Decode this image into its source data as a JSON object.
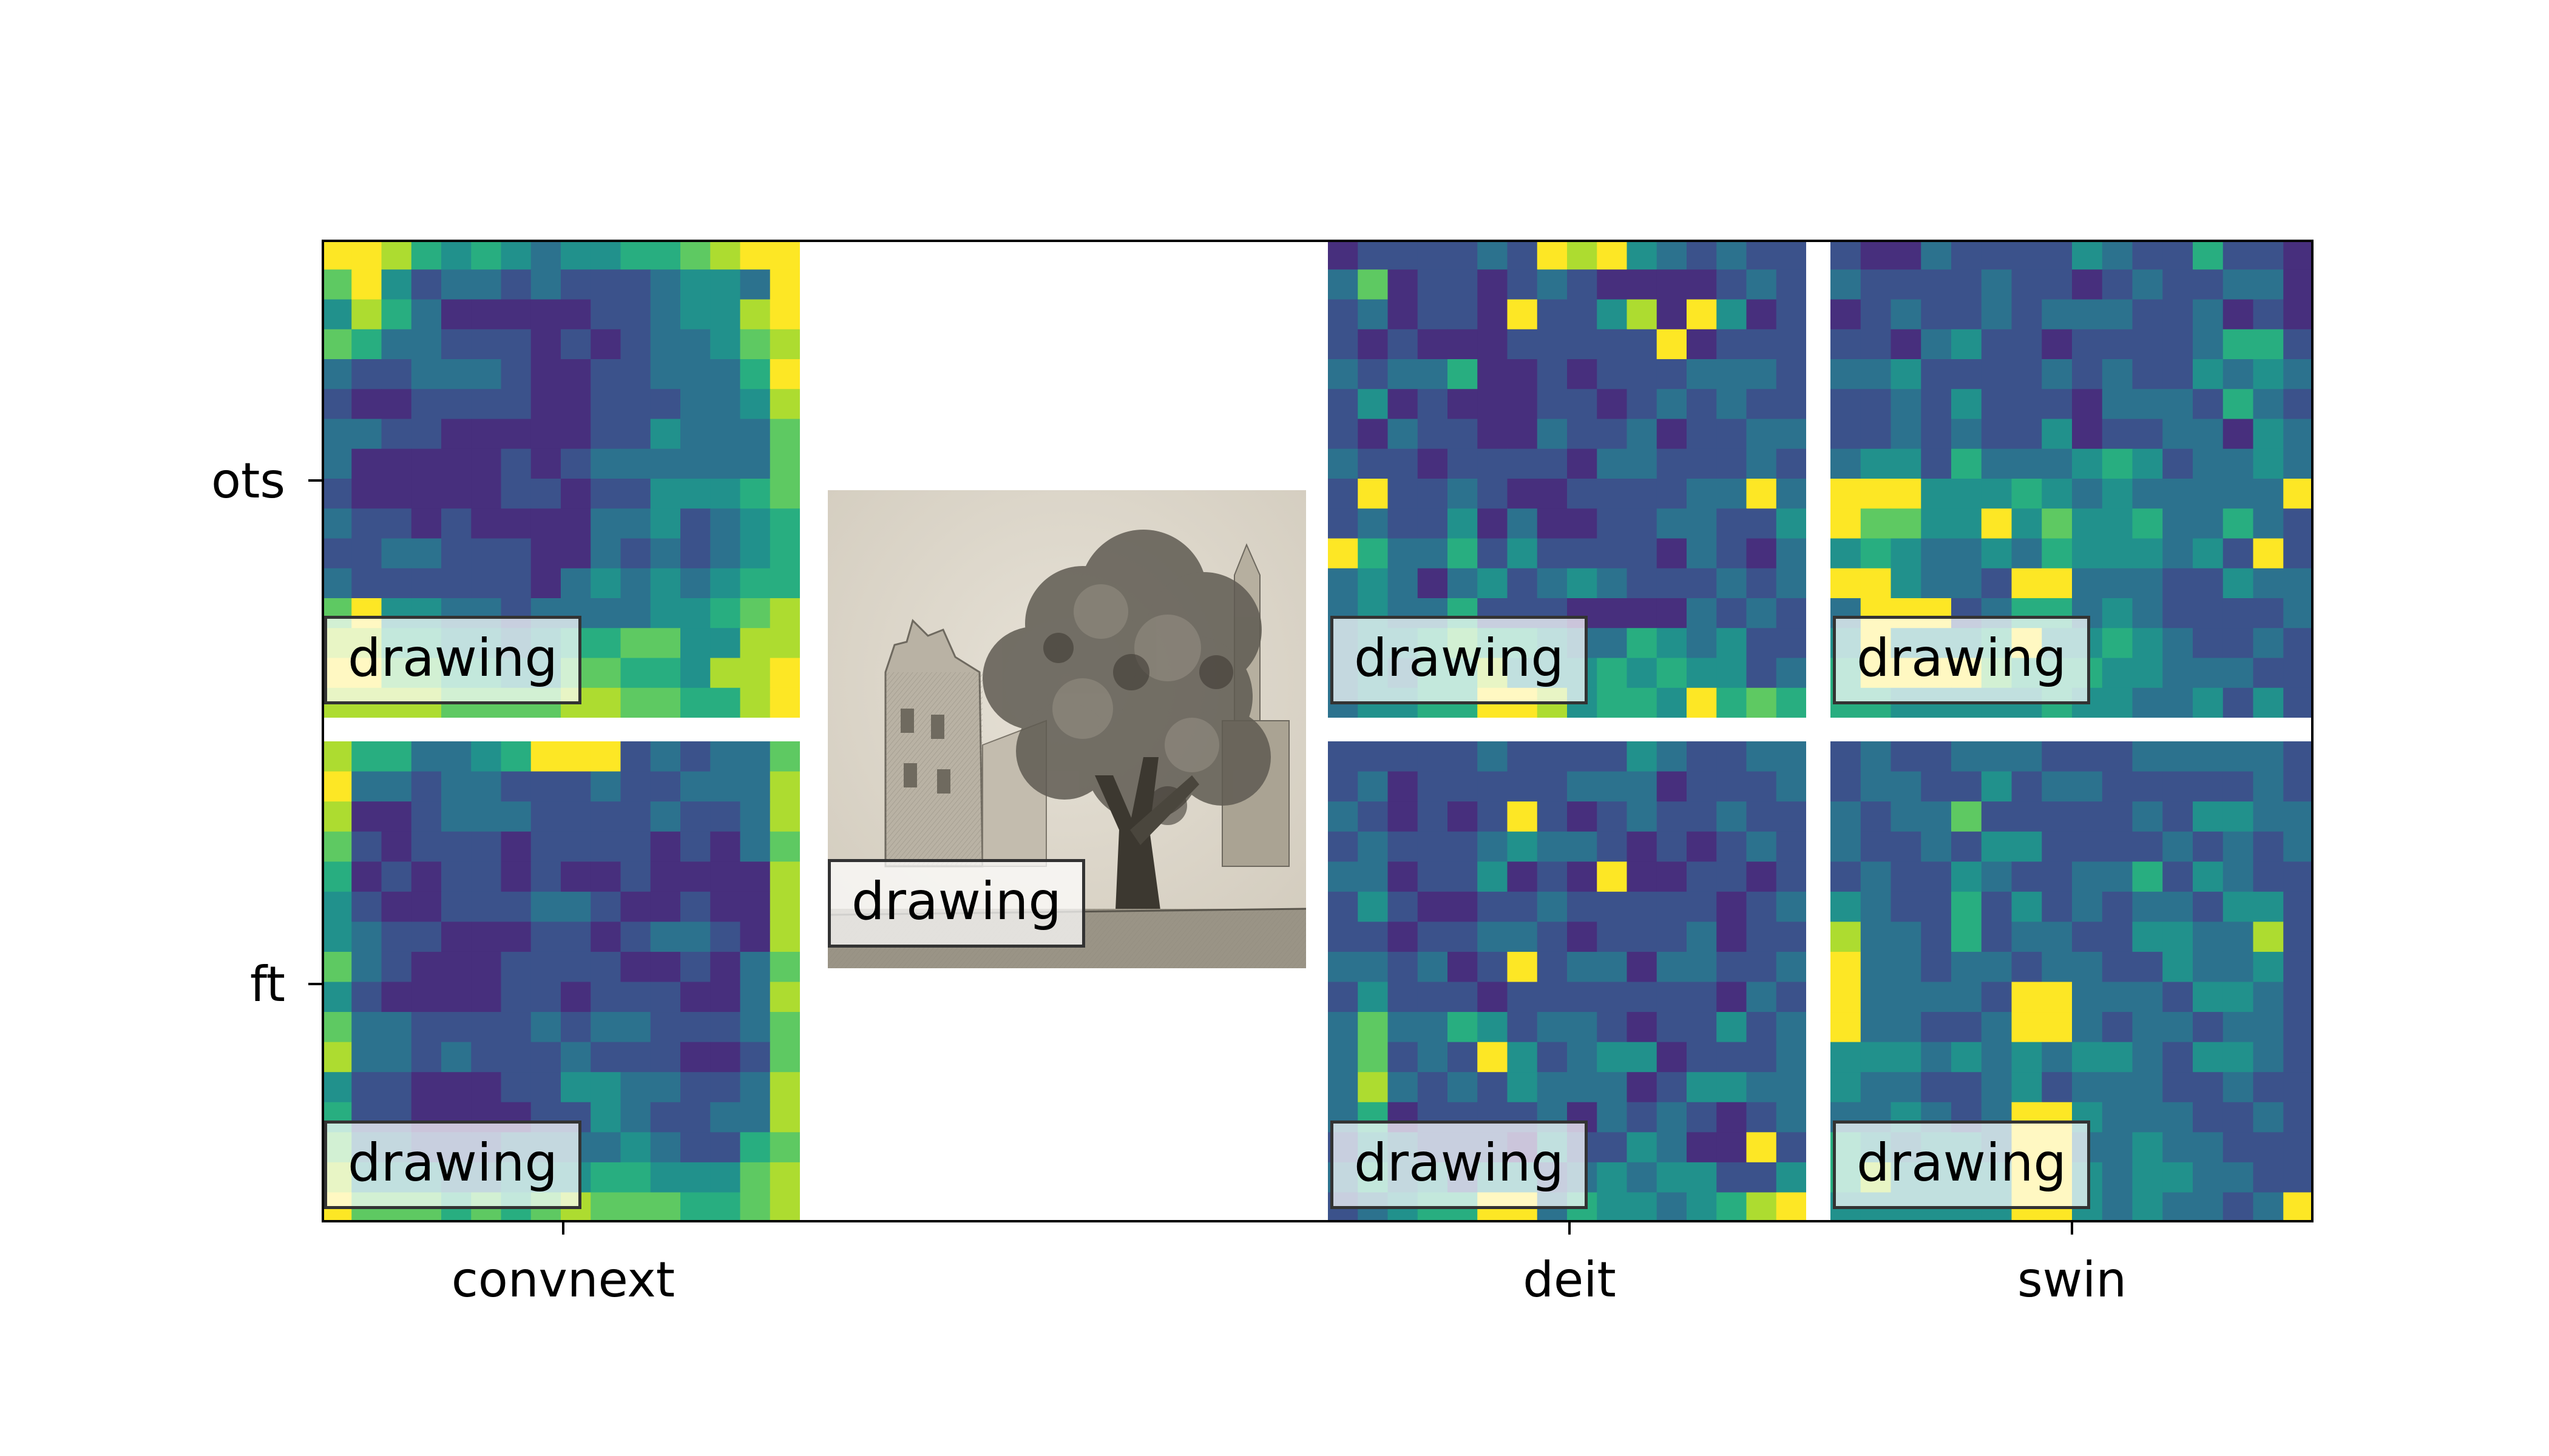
{
  "row_labels": [
    "ots",
    "ft"
  ],
  "column_labels": [
    "convnext",
    "deit",
    "swin"
  ],
  "image_tag": "drawing",
  "colormap": [
    "#440154",
    "#472f7d",
    "#3b528b",
    "#2c728e",
    "#21918c",
    "#28ae80",
    "#5ec962",
    "#addc30",
    "#fde725"
  ],
  "panels": [
    {
      "row": "ots",
      "model": "convnext",
      "grid": [
        "8875454344556788",
        "6842332322234438",
        "4753111112234478",
        "6533222121233467",
        "3223332112233358",
        "2112222112223347",
        "3322111112243336",
        "3111112123333336",
        "2111112212244456",
        "3221211113342345",
        "2233222113232345",
        "3222222134343455",
        "6844332333344567",
        "7755443455664477",
        "8866554466554778",
        "7777666677665578"
      ]
    },
    {
      "row": "ots",
      "model": "deit",
      "grid": [
        "1222232878432322",
        "3612212321111232",
        "2312218224718412",
        "2121112222281222",
        "3233511212223332",
        "2412111221232322",
        "2132211322312233",
        "3221222213322232",
        "2822321122223383",
        "2322413112233224",
        "8533524222213213",
        "3431342343222323",
        "3433522211113232",
        "3445655433543422",
        "3435574445454423",
        "3445588745548565"
      ]
    },
    {
      "row": "ots",
      "model": "swin",
      "grid": [
        "2113222243225221",
        "3222232212322331",
        "1232232333223121",
        "2213422122223552",
        "3342222323224343",
        "2232422213332532",
        "2232322412233143",
        "3442533345423343",
        "8884445434333338",
        "8664484644533532",
        "4543343544434282",
        "8843328833322433",
        "3888235534322223",
        "4844458445432232",
        "5888865554433322",
        "5544444544334242"
      ]
    },
    {
      "row": "ft",
      "model": "convnext",
      "grid": [
        "7553345888232336",
        "8332332223223337",
        "7112333222232237",
        "6212221222212136",
        "5121221211211117",
        "4211222332112117",
        "4322111221233217",
        "6321112222112136",
        "4211112212221137",
        "6332222323322236",
        "7332322232221126",
        "4221112244332237",
        "5221111224322337",
        "6332223333432256",
        "7444334445544467",
        "8666565676665567"
      ]
    },
    {
      "row": "ft",
      "model": "deit",
      "grid": [
        "2222232222432233",
        "2312222233312223",
        "3212128212322322",
        "2322234332121232",
        "3312241218112212",
        "2421122322222123",
        "2212233212223122",
        "3323128233133223",
        "2422212222222132",
        "3633542332122423",
        "3623284234412223",
        "3732324333124433",
        "3512222313232123",
        "2432221422431182",
        "3534244234344224",
        "2345588354434578"
      ]
    },
    {
      "row": "ft",
      "model": "swin",
      "grid": [
        "2322333222333332",
        "2332242332222232",
        "3233622222324433",
        "3223244222232323",
        "2322432233524322",
        "4322524232332442",
        "7332523322443372",
        "8332332332243342",
        "8333328833324432",
        "8332238832332332",
        "4443434344324432",
        "4332234233322322",
        "3343238843332232",
        "5434438833433222",
        "5744448843443322",
        "4444448843433238"
      ]
    }
  ]
}
